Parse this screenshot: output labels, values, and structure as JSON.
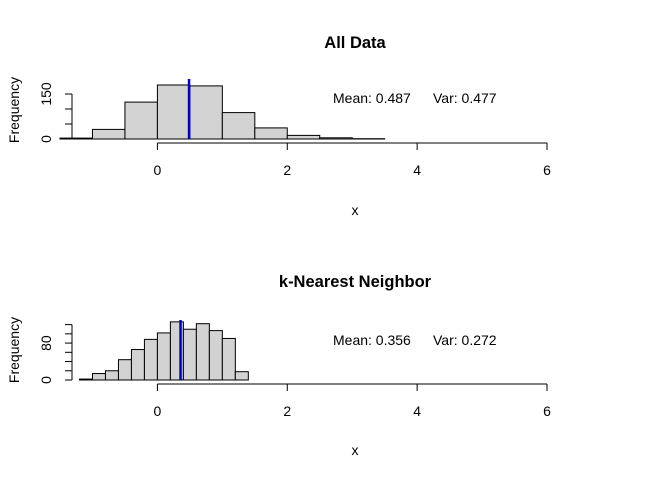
{
  "chart_data": [
    {
      "type": "bar",
      "title": "All Data",
      "xlabel": "x",
      "ylabel": "Frequency",
      "xlim": [
        -1.3,
        6
      ],
      "ylim": [
        0,
        200
      ],
      "x_ticks": [
        0,
        2,
        4,
        6
      ],
      "y_ticks": [
        0,
        50,
        100,
        150
      ],
      "y_tick_labels": [
        "0",
        "150"
      ],
      "bin_edges": [
        -1.5,
        -1.0,
        -0.5,
        0.0,
        0.5,
        1.0,
        1.5,
        2.0,
        2.5,
        3.0,
        3.5
      ],
      "values": [
        3,
        32,
        123,
        180,
        177,
        88,
        37,
        12,
        4,
        1
      ],
      "bar_color": "#d3d3d3",
      "mean_line": {
        "x": 0.487,
        "color": "#0000cd"
      },
      "annotation": {
        "mean": "Mean: 0.487",
        "var": "Var: 0.477"
      },
      "grid": false
    },
    {
      "type": "bar",
      "title": "k-Nearest Neighbor",
      "xlabel": "x",
      "ylabel": "Frequency",
      "xlim": [
        -1.3,
        6
      ],
      "ylim": [
        0,
        130
      ],
      "x_ticks": [
        0,
        2,
        4,
        6
      ],
      "y_ticks": [
        0,
        20,
        40,
        60,
        80,
        100,
        120
      ],
      "y_tick_labels": [
        "0",
        "80"
      ],
      "bin_edges": [
        -1.2,
        -1.0,
        -0.8,
        -0.6,
        -0.4,
        -0.2,
        0.0,
        0.2,
        0.4,
        0.6,
        0.8,
        1.0,
        1.2,
        1.4
      ],
      "values": [
        2,
        14,
        20,
        44,
        66,
        88,
        102,
        126,
        110,
        122,
        107,
        90,
        18
      ],
      "bar_color": "#d3d3d3",
      "mean_line": {
        "x": 0.356,
        "color": "#0000cd"
      },
      "annotation": {
        "mean": "Mean: 0.356",
        "var": "Var: 0.272"
      },
      "grid": false
    }
  ]
}
